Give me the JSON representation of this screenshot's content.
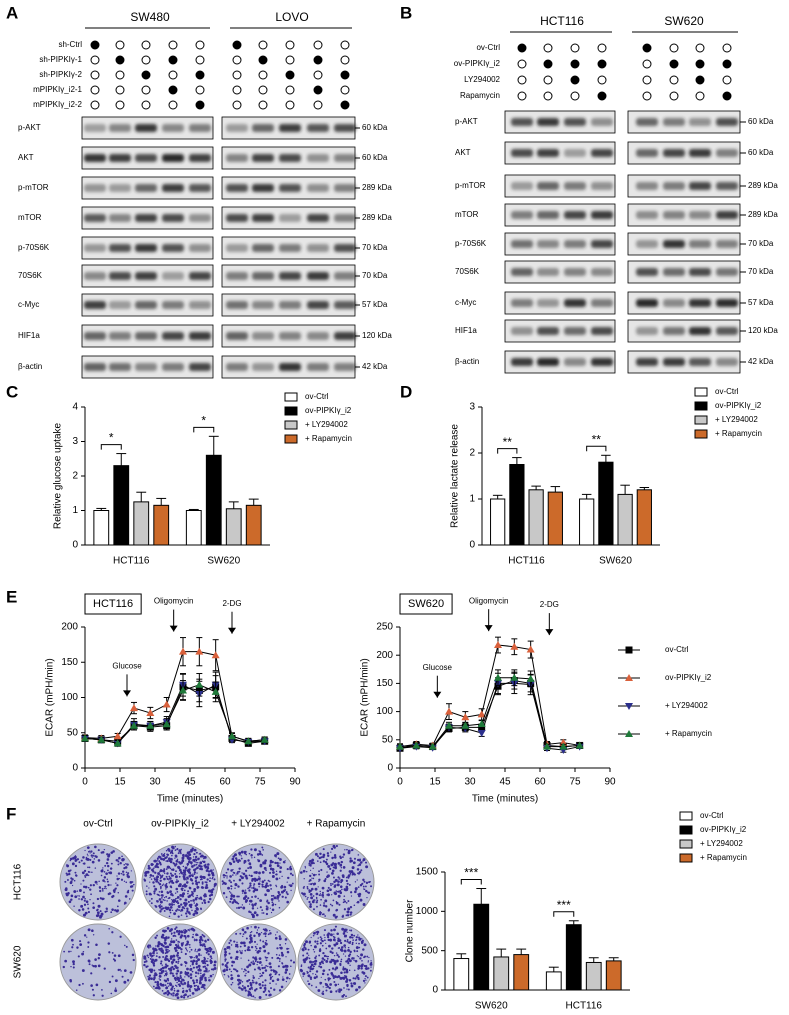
{
  "panel_labels": [
    "A",
    "B",
    "C",
    "D",
    "E",
    "F"
  ],
  "blots": [
    {
      "groups": [
        "SW480",
        "LOVO"
      ],
      "conditions": [
        {
          "name": "sh-Ctrl",
          "lanes": [
            true,
            false,
            false,
            false,
            false
          ]
        },
        {
          "name": "sh-PIPKIγ-1",
          "lanes": [
            false,
            true,
            false,
            true,
            false
          ]
        },
        {
          "name": "sh-PIPKIγ-2",
          "lanes": [
            false,
            false,
            true,
            false,
            true
          ]
        },
        {
          "name": "mPIPKIγ_i2-1",
          "lanes": [
            false,
            false,
            false,
            true,
            false
          ]
        },
        {
          "name": "mPIPKIγ_i2-2",
          "lanes": [
            false,
            false,
            false,
            false,
            true
          ]
        }
      ],
      "proteins": [
        "p-AKT",
        "AKT",
        "p-mTOR",
        "mTOR",
        "p-70S6K",
        "70S6K",
        "c-Myc",
        "HIF1a",
        "β-actin"
      ],
      "sizes": [
        "60 kDa",
        "60 kDa",
        "289 kDa",
        "289 kDa",
        "70 kDa",
        "70 kDa",
        "57 kDa",
        "120 kDa",
        "42 kDa"
      ]
    },
    {
      "groups": [
        "HCT116",
        "SW620"
      ],
      "conditions": [
        {
          "name": "ov-Ctrl",
          "lanes": [
            true,
            false,
            false,
            false
          ]
        },
        {
          "name": "ov-PIPKIγ_i2",
          "lanes": [
            false,
            true,
            true,
            true
          ]
        },
        {
          "name": "LY294002",
          "lanes": [
            false,
            false,
            true,
            false
          ]
        },
        {
          "name": "Rapamycin",
          "lanes": [
            false,
            false,
            false,
            true
          ]
        }
      ],
      "proteins": [
        "p-AKT",
        "AKT",
        "p-mTOR",
        "mTOR",
        "p-70S6K",
        "70S6K",
        "c-Myc",
        "HIF1a",
        "β-actin"
      ],
      "sizes": [
        "60 kDa",
        "60 kDa",
        "289 kDa",
        "289 kDa",
        "70 kDa",
        "70 kDa",
        "57 kDa",
        "120 kDa",
        "42 kDa"
      ]
    }
  ],
  "colony": {
    "columns": [
      "ov-Ctrl",
      "ov-PIPKIγ_i2",
      "+ LY294002",
      "+ Rapamycin"
    ],
    "rows": [
      "HCT116",
      "SW620"
    ]
  },
  "chart_data": [
    {
      "type": "bar",
      "ylabel": "Relative glucose uptake",
      "categories": [
        "HCT116",
        "SW620"
      ],
      "ylim": [
        0,
        4
      ],
      "yticks": [
        0,
        1,
        2,
        3,
        4
      ],
      "significance": [
        "*",
        "*"
      ],
      "series": [
        {
          "name": "ov-Ctrl",
          "color": "#ffffff",
          "values": [
            1.0,
            1.0
          ],
          "errors": [
            0.06,
            0.03
          ]
        },
        {
          "name": "ov-PIPKIγ_i2",
          "color": "#000000",
          "values": [
            2.3,
            2.6
          ],
          "errors": [
            0.35,
            0.55
          ]
        },
        {
          "name": "+ LY294002",
          "color": "#c8c8c8",
          "values": [
            1.25,
            1.05
          ],
          "errors": [
            0.28,
            0.2
          ]
        },
        {
          "name": "+ Rapamycin",
          "color": "#cc6a2a",
          "values": [
            1.15,
            1.15
          ],
          "errors": [
            0.2,
            0.18
          ]
        }
      ]
    },
    {
      "type": "bar",
      "ylabel": "Relative lactate release",
      "categories": [
        "HCT116",
        "SW620"
      ],
      "ylim": [
        0,
        3
      ],
      "yticks": [
        0,
        1,
        2,
        3
      ],
      "significance": [
        "**",
        "**"
      ],
      "series": [
        {
          "name": "ov-Ctrl",
          "color": "#ffffff",
          "values": [
            1.0,
            1.0
          ],
          "errors": [
            0.08,
            0.1
          ]
        },
        {
          "name": "ov-PIPKIγ_i2",
          "color": "#000000",
          "values": [
            1.75,
            1.8
          ],
          "errors": [
            0.15,
            0.15
          ]
        },
        {
          "name": "+ LY294002",
          "color": "#c8c8c8",
          "values": [
            1.2,
            1.1
          ],
          "errors": [
            0.08,
            0.2
          ]
        },
        {
          "name": "+ Rapamycin",
          "color": "#cc6a2a",
          "values": [
            1.15,
            1.2
          ],
          "errors": [
            0.12,
            0.05
          ]
        }
      ]
    },
    {
      "type": "line",
      "title": "HCT116",
      "xlabel": "Time (minutes)",
      "ylabel": "ECAR (mPH/min)",
      "x": [
        0,
        7,
        14,
        21,
        28,
        35,
        42,
        49,
        56,
        63,
        70,
        77
      ],
      "xlim": [
        0,
        90
      ],
      "xticks": [
        0,
        15,
        30,
        45,
        60,
        75,
        90
      ],
      "ylim": [
        0,
        200
      ],
      "yticks": [
        0,
        50,
        100,
        150,
        200
      ],
      "annotations": [
        {
          "text": "Glucose",
          "x": 18
        },
        {
          "text": "Oligomycin",
          "x": 38
        },
        {
          "text": "2-DG",
          "x": 63
        }
      ],
      "series": [
        {
          "color": "#000000",
          "marker": "square",
          "values": [
            42,
            40,
            38,
            60,
            58,
            60,
            115,
            110,
            115,
            42,
            35,
            38
          ],
          "errors": [
            4,
            3,
            4,
            6,
            6,
            6,
            18,
            16,
            16,
            4,
            3,
            3
          ]
        },
        {
          "color": "#d9603b",
          "marker": "triangle-up",
          "values": [
            43,
            42,
            45,
            85,
            78,
            90,
            165,
            165,
            160,
            45,
            38,
            40
          ],
          "errors": [
            4,
            4,
            4,
            8,
            8,
            10,
            20,
            20,
            22,
            5,
            4,
            4
          ]
        },
        {
          "color": "#2b2f8c",
          "marker": "triangle-down",
          "values": [
            42,
            40,
            35,
            62,
            60,
            65,
            118,
            105,
            118,
            40,
            37,
            38
          ],
          "errors": [
            4,
            4,
            4,
            8,
            6,
            8,
            16,
            18,
            18,
            4,
            4,
            4
          ]
        },
        {
          "color": "#1f7a3a",
          "marker": "triangle-up",
          "values": [
            42,
            40,
            35,
            60,
            60,
            62,
            110,
            118,
            108,
            45,
            38,
            40
          ],
          "errors": [
            4,
            3,
            4,
            6,
            6,
            8,
            14,
            16,
            14,
            4,
            4,
            4
          ]
        }
      ]
    },
    {
      "type": "line",
      "title": "SW620",
      "xlabel": "Time (minutes)",
      "ylabel": "ECAR (mPH/min)",
      "x": [
        0,
        7,
        14,
        21,
        28,
        35,
        42,
        49,
        56,
        63,
        70,
        77
      ],
      "xlim": [
        0,
        90
      ],
      "xticks": [
        0,
        15,
        30,
        45,
        60,
        75,
        90
      ],
      "ylim": [
        0,
        250
      ],
      "yticks": [
        0,
        50,
        100,
        150,
        200,
        250
      ],
      "legend": "right",
      "annotations": [
        {
          "text": "Glucose",
          "x": 16
        },
        {
          "text": "Oligomycin",
          "x": 38
        },
        {
          "text": "2-DG",
          "x": 64
        }
      ],
      "series": [
        {
          "name": "ov-Ctrl",
          "color": "#000000",
          "marker": "square",
          "values": [
            35,
            40,
            38,
            70,
            72,
            72,
            145,
            155,
            150,
            40,
            38,
            40
          ],
          "errors": [
            3,
            4,
            3,
            6,
            6,
            6,
            15,
            15,
            15,
            4,
            4,
            3
          ]
        },
        {
          "name": "ov-PIPKIγ_i2",
          "color": "#d9603b",
          "marker": "triangle-up",
          "values": [
            38,
            42,
            40,
            100,
            90,
            95,
            218,
            215,
            210,
            42,
            45,
            40
          ],
          "errors": [
            5,
            5,
            4,
            14,
            10,
            10,
            14,
            14,
            15,
            5,
            5,
            4
          ]
        },
        {
          "name": "+ LY294002",
          "color": "#2b2f8c",
          "marker": "triangle-down",
          "values": [
            35,
            38,
            36,
            72,
            70,
            62,
            150,
            150,
            148,
            35,
            32,
            38
          ],
          "errors": [
            4,
            4,
            3,
            6,
            6,
            6,
            18,
            18,
            18,
            4,
            4,
            3
          ]
        },
        {
          "name": "+ Rapamycin",
          "color": "#1f7a3a",
          "marker": "triangle-up",
          "values": [
            38,
            40,
            38,
            75,
            75,
            78,
            160,
            160,
            158,
            38,
            38,
            40
          ],
          "errors": [
            4,
            4,
            3,
            6,
            6,
            6,
            14,
            14,
            14,
            4,
            4,
            3
          ]
        }
      ]
    },
    {
      "type": "bar",
      "ylabel": "Clone number",
      "categories": [
        "SW620",
        "HCT116"
      ],
      "ylim": [
        0,
        1500
      ],
      "yticks": [
        0,
        500,
        1000,
        1500
      ],
      "significance": [
        "***",
        "***"
      ],
      "series": [
        {
          "name": "ov-Ctrl",
          "color": "#ffffff",
          "values": [
            400,
            230
          ],
          "errors": [
            60,
            60
          ]
        },
        {
          "name": "ov-PIPKIγ_i2",
          "color": "#000000",
          "values": [
            1090,
            830
          ],
          "errors": [
            200,
            50
          ]
        },
        {
          "name": "+ LY294002",
          "color": "#c8c8c8",
          "values": [
            420,
            350
          ],
          "errors": [
            100,
            60
          ]
        },
        {
          "name": "+ Rapamycin",
          "color": "#cc6a2a",
          "values": [
            450,
            370
          ],
          "errors": [
            70,
            40
          ]
        }
      ]
    }
  ]
}
